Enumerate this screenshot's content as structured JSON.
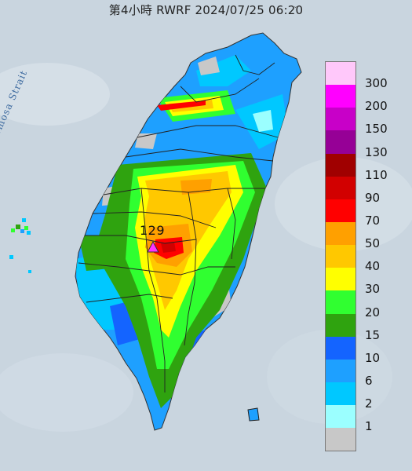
{
  "title": "第4小時  RWRF 2024/07/25 06:20",
  "strait_label": "Formosa Strait",
  "station": {
    "value_label": "129",
    "marker": "triangle-marker"
  },
  "legend": {
    "unit_steps": [
      {
        "label": "300",
        "color": "#ffc8fa"
      },
      {
        "label": "200",
        "color": "#ff00ff"
      },
      {
        "label": "150",
        "color": "#c800c8"
      },
      {
        "label": "130",
        "color": "#960096"
      },
      {
        "label": "110",
        "color": "#a00000"
      },
      {
        "label": "90",
        "color": "#d20000"
      },
      {
        "label": "70",
        "color": "#ff0000"
      },
      {
        "label": "50",
        "color": "#ffa000"
      },
      {
        "label": "40",
        "color": "#ffc800"
      },
      {
        "label": "30",
        "color": "#ffff00"
      },
      {
        "label": "20",
        "color": "#30ff30"
      },
      {
        "label": "15",
        "color": "#2fa30f"
      },
      {
        "label": "10",
        "color": "#1464ff"
      },
      {
        "label": "6",
        "color": "#1ea0ff"
      },
      {
        "label": "2",
        "color": "#00c8ff"
      },
      {
        "label": "1",
        "color": "#9bffff"
      },
      {
        "label": "",
        "color": "#c8c8c8"
      }
    ]
  },
  "map": {
    "sea_color": "#c9d5df",
    "land_base_color": "#1ea0ff",
    "county_line_color": "#222222"
  }
}
